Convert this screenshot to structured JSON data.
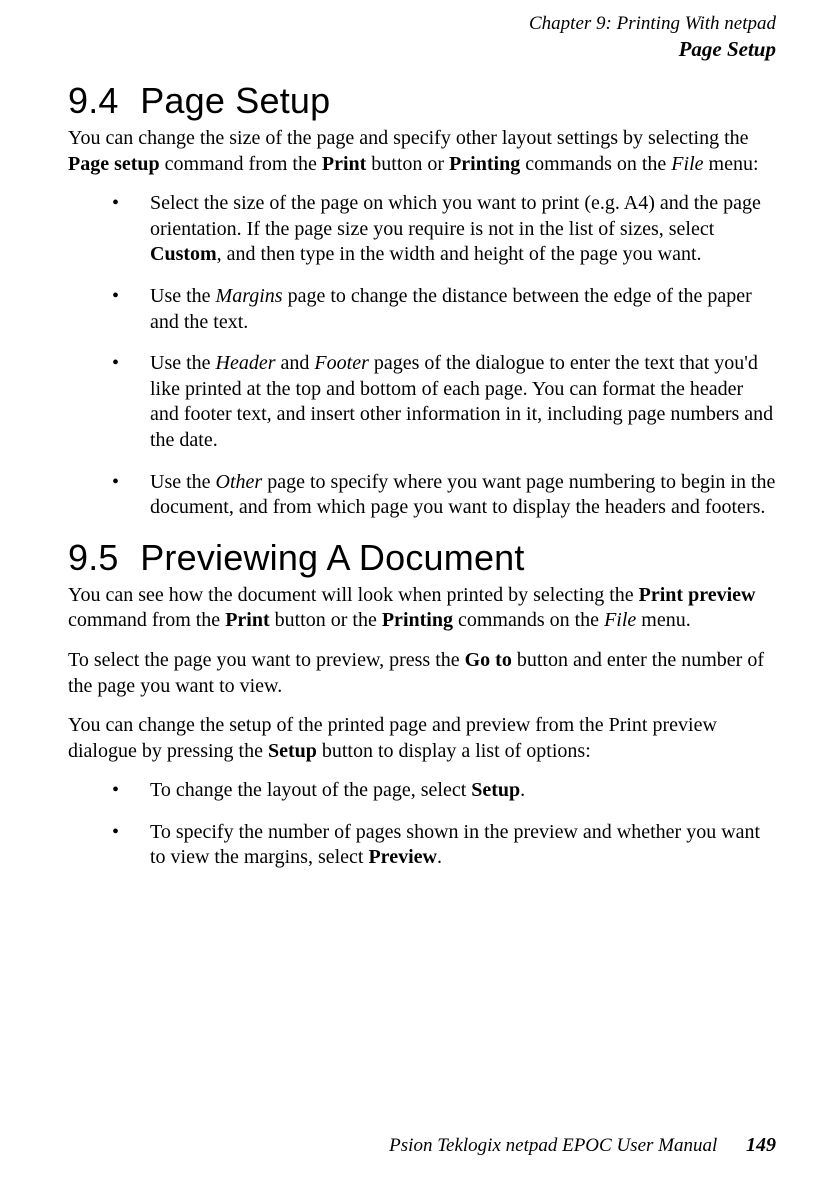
{
  "header": {
    "chapter_line": "Chapter 9:  Printing With netpad",
    "section_line": "Page Setup"
  },
  "sections": {
    "s94": {
      "number": "9.4",
      "title": "Page Setup",
      "intro_parts": [
        "You can change the size of the page and specify other layout settings by selecting the ",
        "Page setup",
        " command from the ",
        "Print",
        " button or ",
        "Printing",
        " commands on the ",
        "File",
        " menu:"
      ],
      "bullets": {
        "b1": [
          "Select the size of the page on which you want to print (e.g. A4) and the page orientation. If the page size you require is not in the list of sizes, select ",
          "Custom",
          ", and then type in the width and height of the page you want."
        ],
        "b2": [
          "Use the ",
          "Margins",
          " page to change the distance between the edge of the paper and the text."
        ],
        "b3": [
          "Use the ",
          "Header",
          " and ",
          "Footer",
          " pages of the dialogue to enter the text that you'd like printed at the top and bottom of each page. You can format the header and footer text, and insert other information in it, including page numbers and the date."
        ],
        "b4": [
          "Use the ",
          "Other",
          " page to specify where you want page numbering to begin in the document, and from which page you want to display the headers and footers."
        ]
      }
    },
    "s95": {
      "number": "9.5",
      "title": "Previewing A Document",
      "p1": [
        "You can see how the document will look when printed by selecting the ",
        "Print preview",
        " command from the ",
        "Print",
        " button or the ",
        "Printing",
        " commands on the ",
        "File",
        " menu."
      ],
      "p2": [
        "To select the page you want to preview, press the ",
        "Go to",
        " button and enter the number of the page you want to view."
      ],
      "p3": [
        "You can change the setup of the printed page and preview from the Print preview dialogue by pressing the ",
        "Setup",
        " button to display a list of options:"
      ],
      "bullets": {
        "b1": [
          "To change the layout of the page, select ",
          "Setup",
          "."
        ],
        "b2": [
          "To specify the number of pages shown in the preview and whether you want to view the margins, select ",
          "Preview",
          "."
        ]
      }
    }
  },
  "footer": {
    "manual_title": "Psion Teklogix netpad EPOC User Manual",
    "page_number": "149"
  }
}
